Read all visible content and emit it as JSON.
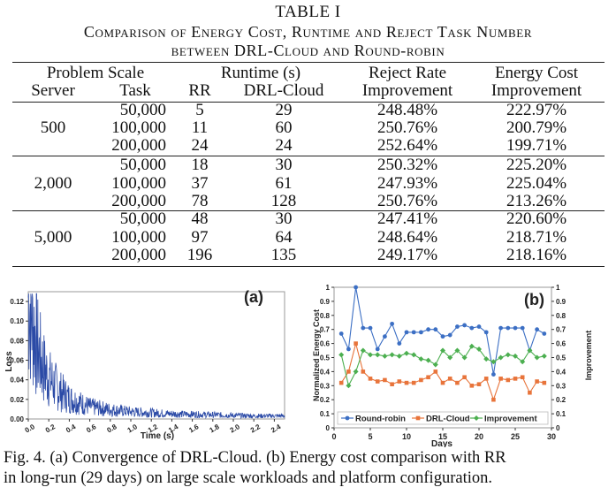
{
  "table": {
    "label": "TABLE I",
    "title_line1": "Comparison of Energy Cost, Runtime and Reject Task Number",
    "title_line2": "between DRL-Cloud and Round-robin",
    "header": {
      "problem_scale": "Problem Scale",
      "runtime": "Runtime (s)",
      "reject_rate_l1": "Reject Rate",
      "reject_rate_l2": "Improvement",
      "energy_cost_l1": "Energy Cost",
      "energy_cost_l2": "Improvement",
      "server": "Server",
      "task": "Task",
      "rr": "RR",
      "drl_cloud": "DRL-Cloud"
    },
    "groups": [
      {
        "server": "500",
        "rows": [
          {
            "task": "50,000",
            "rr": "5",
            "drl": "29",
            "reject": "248.48%",
            "energy": "222.97%"
          },
          {
            "task": "100,000",
            "rr": "11",
            "drl": "60",
            "reject": "250.76%",
            "energy": "200.79%"
          },
          {
            "task": "200,000",
            "rr": "24",
            "drl": "24",
            "reject": "252.64%",
            "energy": "199.71%"
          }
        ]
      },
      {
        "server": "2,000",
        "rows": [
          {
            "task": "50,000",
            "rr": "18",
            "drl": "30",
            "reject": "250.32%",
            "energy": "225.20%"
          },
          {
            "task": "100,000",
            "rr": "37",
            "drl": "61",
            "reject": "247.93%",
            "energy": "225.04%"
          },
          {
            "task": "200,000",
            "rr": "78",
            "drl": "128",
            "reject": "250.76%",
            "energy": "213.26%"
          }
        ]
      },
      {
        "server": "5,000",
        "rows": [
          {
            "task": "50,000",
            "rr": "48",
            "drl": "30",
            "reject": "247.41%",
            "energy": "220.60%"
          },
          {
            "task": "100,000",
            "rr": "97",
            "drl": "64",
            "reject": "248.64%",
            "energy": "218.71%"
          },
          {
            "task": "200,000",
            "rr": "196",
            "drl": "135",
            "reject": "249.17%",
            "energy": "218.16%"
          }
        ]
      }
    ]
  },
  "chart_data": [
    {
      "type": "line",
      "panel_label": "(a)",
      "xlabel": "Time (s)",
      "ylabel": "Loss",
      "xlim": [
        0,
        2.5
      ],
      "ylim": [
        0,
        0.13
      ],
      "x_ticks": [
        "0.0",
        "0.2",
        "0.4",
        "0.6",
        "0.8",
        "1.0",
        "1.2",
        "1.4",
        "1.6",
        "1.8",
        "2.0",
        "2.2",
        "2.4"
      ],
      "y_ticks": [
        "0.00",
        "0.02",
        "0.04",
        "0.06",
        "0.08",
        "0.10",
        "0.12"
      ],
      "color": "#2b4aa6",
      "series_description_points": {
        "x": [
          0.0,
          0.02,
          0.05,
          0.1,
          0.15,
          0.2,
          0.3,
          0.4,
          0.5,
          0.6,
          0.8,
          1.0,
          1.2,
          1.4,
          1.6,
          1.8,
          2.0,
          2.2,
          2.4,
          2.5
        ],
        "y": [
          0.12,
          0.11,
          0.09,
          0.065,
          0.05,
          0.04,
          0.028,
          0.02,
          0.016,
          0.012,
          0.009,
          0.007,
          0.006,
          0.005,
          0.0045,
          0.004,
          0.0035,
          0.003,
          0.003,
          0.003
        ]
      }
    },
    {
      "type": "line",
      "panel_label": "(b)",
      "xlabel": "Days",
      "ylabel": "Normalized Energy Cost",
      "ylabel_right": "Improvement",
      "xlim": [
        0,
        30
      ],
      "ylim": [
        0,
        1
      ],
      "ylim_right": [
        0,
        1
      ],
      "x_ticks": [
        "0",
        "5",
        "10",
        "15",
        "20",
        "25",
        "30"
      ],
      "y_ticks": [
        "0",
        "0.1",
        "0.2",
        "0.3",
        "0.4",
        "0.5",
        "0.6",
        "0.7",
        "0.8",
        "0.9",
        "1"
      ],
      "y_ticks_right": [
        "0",
        "0.1",
        "0.2",
        "0.3",
        "0.4",
        "0.5",
        "0.6",
        "0.7",
        "0.8",
        "0.9",
        "1"
      ],
      "x": [
        1,
        2,
        3,
        4,
        5,
        6,
        7,
        8,
        9,
        10,
        11,
        12,
        13,
        14,
        15,
        16,
        17,
        18,
        19,
        20,
        21,
        22,
        23,
        24,
        25,
        26,
        27,
        28,
        29
      ],
      "series": [
        {
          "name": "Round-robin",
          "color": "#3c6fc4",
          "marker": "circle",
          "values": [
            0.67,
            0.56,
            1.0,
            0.71,
            0.71,
            0.56,
            0.65,
            0.74,
            0.6,
            0.68,
            0.68,
            0.68,
            0.7,
            0.7,
            0.65,
            0.66,
            0.72,
            0.73,
            0.71,
            0.72,
            0.68,
            0.38,
            0.71,
            0.71,
            0.71,
            0.71,
            0.55,
            0.7,
            0.67
          ]
        },
        {
          "name": "DRL-Cloud",
          "color": "#e8743b",
          "marker": "square",
          "values": [
            0.32,
            0.4,
            0.6,
            0.4,
            0.35,
            0.33,
            0.34,
            0.31,
            0.33,
            0.32,
            0.32,
            0.34,
            0.36,
            0.4,
            0.32,
            0.35,
            0.32,
            0.36,
            0.3,
            0.31,
            0.35,
            0.2,
            0.35,
            0.34,
            0.35,
            0.36,
            0.25,
            0.33,
            0.32
          ]
        },
        {
          "name": "Improvement",
          "color": "#4caf50",
          "marker": "diamond",
          "values": [
            0.52,
            0.3,
            0.4,
            0.55,
            0.52,
            0.52,
            0.51,
            0.52,
            0.51,
            0.53,
            0.52,
            0.49,
            0.48,
            0.45,
            0.55,
            0.5,
            0.55,
            0.5,
            0.58,
            0.56,
            0.49,
            0.47,
            0.5,
            0.52,
            0.51,
            0.47,
            0.55,
            0.5,
            0.51
          ]
        }
      ],
      "legend_location": "bottom"
    }
  ],
  "caption": {
    "line1": "Fig. 4.  (a) Convergence of DRL-Cloud. (b) Energy cost comparison with RR",
    "line2": "in long-run (29 days) on large scale workloads and platform configuration."
  }
}
